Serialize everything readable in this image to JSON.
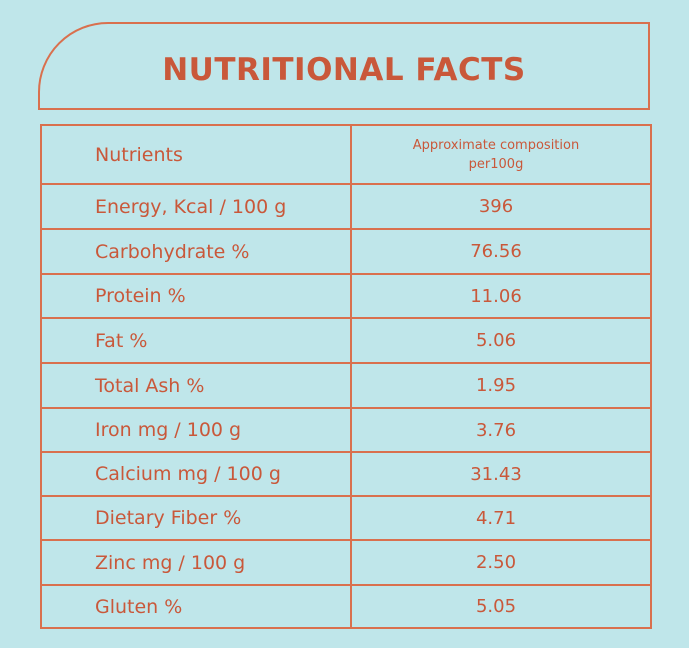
{
  "title": "NUTRITIONAL FACTS",
  "table": {
    "header": {
      "col1": "Nutrients",
      "col2_line1": "Approximate composition",
      "col2_line2": "per100g"
    },
    "rows": [
      {
        "name": "Energy, Kcal / 100 g",
        "value": "396"
      },
      {
        "name": "Carbohydrate %",
        "value": "76.56"
      },
      {
        "name": "Protein %",
        "value": "11.06"
      },
      {
        "name": "Fat %",
        "value": "5.06"
      },
      {
        "name": "Total Ash %",
        "value": "1.95"
      },
      {
        "name": "Iron mg / 100 g",
        "value": "3.76"
      },
      {
        "name": "Calcium mg / 100 g",
        "value": "31.43"
      },
      {
        "name": "Dietary Fiber %",
        "value": "4.71"
      },
      {
        "name": "Zinc mg / 100 g",
        "value": "2.50"
      },
      {
        "name": "Gluten %",
        "value": "5.05"
      }
    ]
  },
  "colors": {
    "background": "#bfe6ea",
    "border": "#d9704e",
    "text": "#c9583a"
  }
}
